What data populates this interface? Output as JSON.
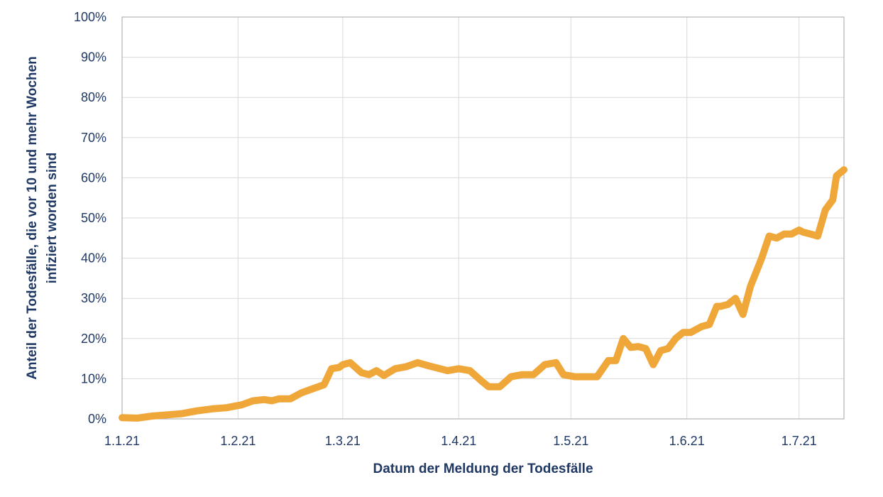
{
  "chart_data": {
    "type": "line",
    "title": "",
    "xlabel": "Datum der Meldung der Todesfälle",
    "ylabel_lines": [
      "Anteil der Todesfälle, die vor 10 und mehr Wochen",
      "infiziert worden sind"
    ],
    "x_ticks": [
      "1.1.21",
      "1.2.21",
      "1.3.21",
      "1.4.21",
      "1.5.21",
      "1.6.21",
      "1.7.21"
    ],
    "y_ticks": [
      "0%",
      "10%",
      "20%",
      "30%",
      "40%",
      "50%",
      "60%",
      "70%",
      "80%",
      "90%",
      "100%"
    ],
    "xlim": [
      "2021-01-01",
      "2021-07-13"
    ],
    "ylim": [
      0,
      100
    ],
    "grid": true,
    "series": [
      {
        "color": "#f0a73a",
        "x": [
          "2021-01-01",
          "2021-01-05",
          "2021-01-09",
          "2021-01-13",
          "2021-01-17",
          "2021-01-21",
          "2021-01-25",
          "2021-01-29",
          "2021-02-02",
          "2021-02-05",
          "2021-02-08",
          "2021-02-10",
          "2021-02-12",
          "2021-02-15",
          "2021-02-18",
          "2021-02-21",
          "2021-02-24",
          "2021-02-26",
          "2021-02-28",
          "2021-03-01",
          "2021-03-03",
          "2021-03-06",
          "2021-03-08",
          "2021-03-10",
          "2021-03-12",
          "2021-03-15",
          "2021-03-18",
          "2021-03-21",
          "2021-03-24",
          "2021-03-27",
          "2021-03-29",
          "2021-04-01",
          "2021-04-04",
          "2021-04-07",
          "2021-04-09",
          "2021-04-12",
          "2021-04-15",
          "2021-04-18",
          "2021-04-21",
          "2021-04-24",
          "2021-04-27",
          "2021-04-29",
          "2021-05-02",
          "2021-05-05",
          "2021-05-08",
          "2021-05-11",
          "2021-05-13",
          "2021-05-15",
          "2021-05-17",
          "2021-05-19",
          "2021-05-21",
          "2021-05-23",
          "2021-05-25",
          "2021-05-27",
          "2021-05-29",
          "2021-05-31",
          "2021-06-02",
          "2021-06-04",
          "2021-06-05",
          "2021-06-07",
          "2021-06-09",
          "2021-06-10",
          "2021-06-12",
          "2021-06-14",
          "2021-06-16",
          "2021-06-18",
          "2021-06-21",
          "2021-06-23",
          "2021-06-25",
          "2021-06-27",
          "2021-06-29",
          "2021-07-01",
          "2021-07-02",
          "2021-07-04",
          "2021-07-06",
          "2021-07-08",
          "2021-07-10",
          "2021-07-11",
          "2021-07-13"
        ],
        "values": [
          0.3,
          0.2,
          0.7,
          1.0,
          1.3,
          2.0,
          2.5,
          2.8,
          3.5,
          4.5,
          4.8,
          4.5,
          5.0,
          5.0,
          6.5,
          7.5,
          8.5,
          12.5,
          12.8,
          13.5,
          14.0,
          11.5,
          11.0,
          12.0,
          10.8,
          12.5,
          13.0,
          14.0,
          13.2,
          12.5,
          12.0,
          12.5,
          12.0,
          9.5,
          8.0,
          8.0,
          10.5,
          11.0,
          11.0,
          13.5,
          14.0,
          11.0,
          10.5,
          10.5,
          10.5,
          14.5,
          14.5,
          20.0,
          17.8,
          18.0,
          17.5,
          13.5,
          17.0,
          17.5,
          20.0,
          21.5,
          21.5,
          22.5,
          23.0,
          23.5,
          28.0,
          28.0,
          28.5,
          30.0,
          26.0,
          33.0,
          40.0,
          45.5,
          45.0,
          46.0,
          46.0,
          47.0,
          46.5,
          46.0,
          45.5,
          52.0,
          54.5,
          60.5,
          62.0
        ]
      }
    ]
  }
}
